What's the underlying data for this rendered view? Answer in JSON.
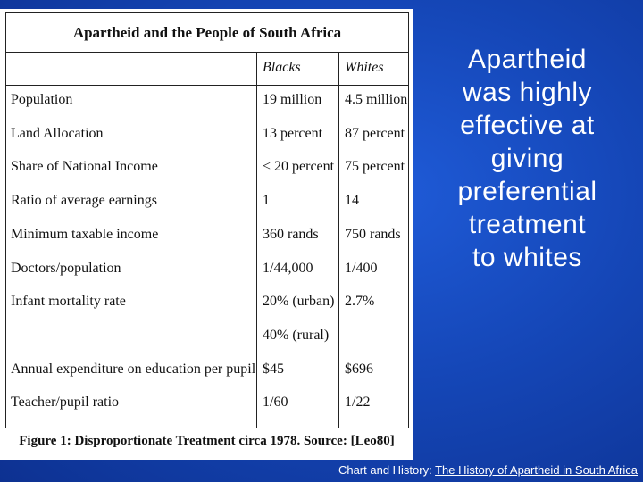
{
  "table": {
    "title": "Apartheid and the People of South Africa",
    "columns": [
      "Blacks",
      "Whites"
    ],
    "rows": [
      {
        "label": "Population",
        "blacks": "19 million",
        "whites": "4.5 million"
      },
      {
        "label": "Land Allocation",
        "blacks": "13 percent",
        "whites": "87 percent"
      },
      {
        "label": "Share of National Income",
        "blacks": "< 20 percent",
        "whites": "75 percent"
      },
      {
        "label": "Ratio of average earnings",
        "blacks": "1",
        "whites": "14"
      },
      {
        "label": "Minimum taxable income",
        "blacks": "360 rands",
        "whites": "750 rands"
      },
      {
        "label": "Doctors/population",
        "blacks": "1/44,000",
        "whites": "1/400"
      },
      {
        "label": "Infant mortality rate",
        "blacks": "20% (urban)",
        "whites": "2.7%"
      },
      {
        "label": "",
        "blacks": "40% (rural)",
        "whites": ""
      },
      {
        "label": "Annual expenditure on education per pupil",
        "blacks": "$45",
        "whites": "$696"
      },
      {
        "label": "Teacher/pupil ratio",
        "blacks": "1/60",
        "whites": "1/22"
      }
    ],
    "caption": "Figure 1: Disproportionate Treatment circa 1978. Source: [Leo80]"
  },
  "headline": {
    "lines": [
      "Apartheid",
      "was highly",
      "effective at",
      "giving",
      "preferential",
      "treatment",
      "to whites"
    ]
  },
  "credit": {
    "prefix": "Chart and History: ",
    "link_text": "The History of Apartheid in South Africa"
  }
}
